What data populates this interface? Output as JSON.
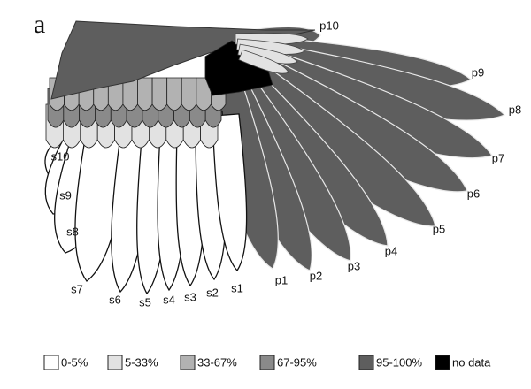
{
  "panel_label": "a",
  "feathers": {
    "primaries": [
      "p1",
      "p2",
      "p3",
      "p4",
      "p5",
      "p6",
      "p7",
      "p8",
      "p9",
      "p10"
    ],
    "secondaries": [
      "s1",
      "s2",
      "s3",
      "s4",
      "s5",
      "s6",
      "s7",
      "s8",
      "s9",
      "s10"
    ]
  },
  "legend": [
    {
      "label": "0-5%",
      "color": "#ffffff"
    },
    {
      "label": "5-33%",
      "color": "#e2e2e2"
    },
    {
      "label": "33-67%",
      "color": "#b2b2b2"
    },
    {
      "label": "67-95%",
      "color": "#8a8a8a"
    },
    {
      "label": "95-100%",
      "color": "#5e5e5e"
    },
    {
      "label": "no data",
      "color": "#000000"
    }
  ]
}
